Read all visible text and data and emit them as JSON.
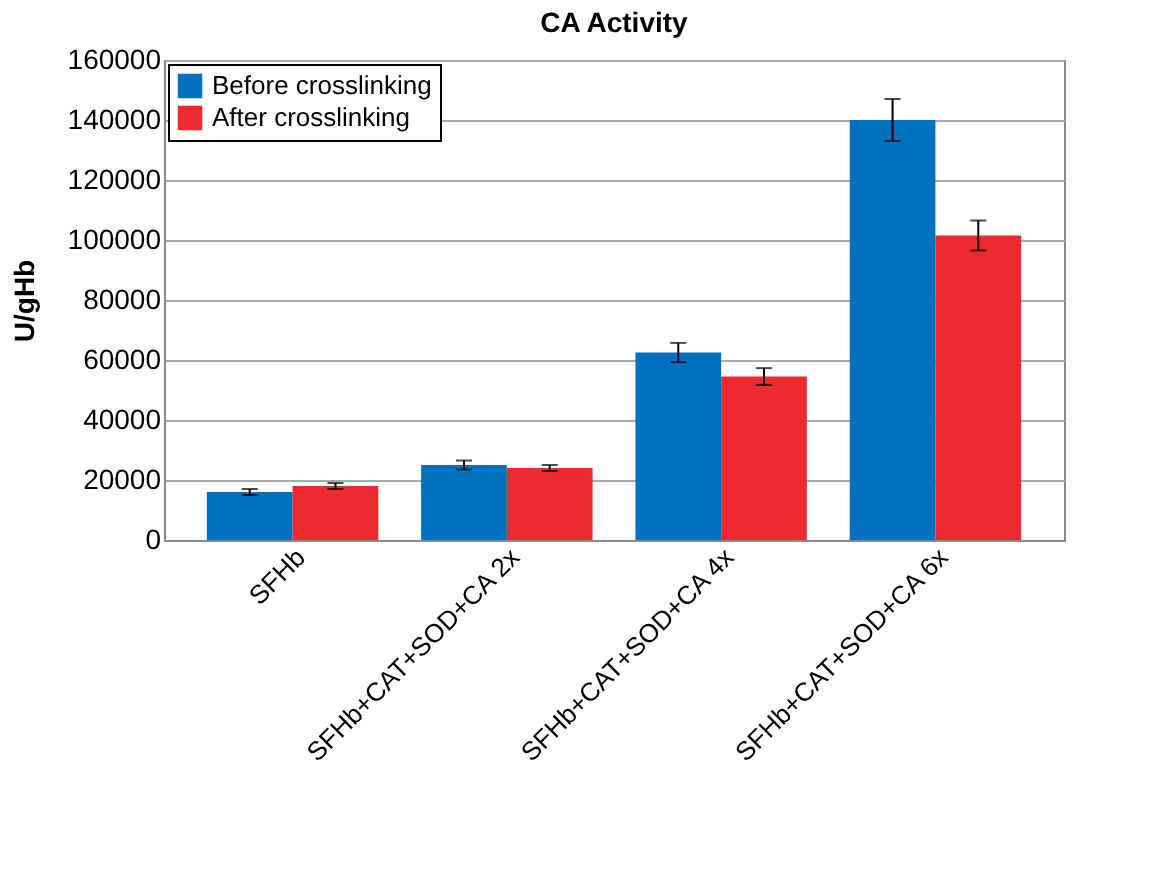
{
  "chart_data": {
    "type": "bar",
    "title": "CA Activity",
    "ylabel": "U/gHb",
    "categories": [
      "SFHb",
      "SFHb+CAT+SOD+CA 2x",
      "SFHb+CAT+SOD+CA 4x",
      "SFHb+CAT+SOD+CA 6x"
    ],
    "series": [
      {
        "name": "Before crosslinking",
        "color": "#0070c0",
        "values": [
          16000,
          25000,
          62500,
          140000
        ],
        "errors": [
          1000,
          1500,
          3200,
          7000
        ]
      },
      {
        "name": "After crosslinking",
        "color": "#ee2a30",
        "values": [
          18000,
          24000,
          54500,
          101500
        ],
        "errors": [
          1000,
          1000,
          2800,
          5000
        ]
      }
    ],
    "ylim": [
      0,
      160000
    ],
    "yticks": [
      0,
      20000,
      40000,
      60000,
      80000,
      100000,
      120000,
      140000,
      160000
    ],
    "grid": "y",
    "legend": "top left"
  }
}
